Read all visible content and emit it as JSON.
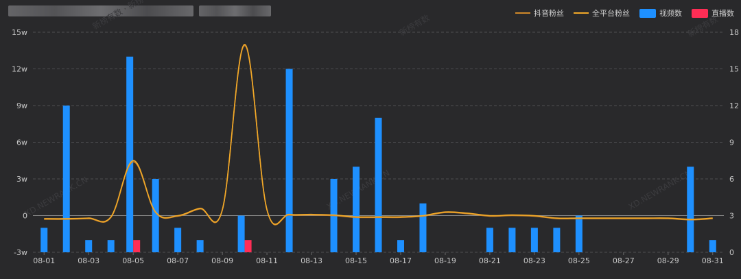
{
  "header": {
    "blurred_title_widths": [
      270,
      105
    ]
  },
  "legend": {
    "items": [
      {
        "label": "抖音粉丝",
        "kind": "line",
        "color": "#d0892a"
      },
      {
        "label": "全平台粉丝",
        "kind": "line",
        "color": "#f2a928"
      },
      {
        "label": "视频数",
        "kind": "rect",
        "color": "#1e90ff"
      },
      {
        "label": "直播数",
        "kind": "rect",
        "color": "#ff2d55"
      }
    ]
  },
  "watermarks": [
    "新榜有数 · 新榜",
    "新榜有数",
    "新榜有数",
    "XD.NEWRANK.CN",
    "XD.NEWRANK.CN",
    "XD.NEWRANK.CN"
  ],
  "chart_data": {
    "type": "bar",
    "x_dates": [
      "08-01",
      "08-02",
      "08-03",
      "08-04",
      "08-05",
      "08-06",
      "08-07",
      "08-08",
      "08-09",
      "08-10",
      "08-11",
      "08-12",
      "08-13",
      "08-14",
      "08-15",
      "08-16",
      "08-17",
      "08-18",
      "08-19",
      "08-20",
      "08-21",
      "08-22",
      "08-23",
      "08-24",
      "08-25",
      "08-26",
      "08-27",
      "08-28",
      "08-29",
      "08-30",
      "08-31"
    ],
    "x_tick_labels": [
      "08-01",
      "08-03",
      "08-05",
      "08-07",
      "08-09",
      "08-11",
      "08-13",
      "08-15",
      "08-17",
      "08-19",
      "08-21",
      "08-23",
      "08-25",
      "08-27",
      "08-29",
      "08-31"
    ],
    "left_axis": {
      "min": -3,
      "max": 15,
      "step": 3,
      "labels": [
        "-3w",
        "0",
        "3w",
        "6w",
        "9w",
        "12w",
        "15w"
      ],
      "unit": "w (万)"
    },
    "right_axis": {
      "min": 0,
      "max": 18,
      "step": 3,
      "labels": [
        "0",
        "3",
        "6",
        "9",
        "12",
        "15",
        "18"
      ]
    },
    "grid": true,
    "legend_position": "top-right",
    "series": [
      {
        "name": "视频数",
        "type": "bar",
        "axis": "right",
        "color": "#1e90ff",
        "values": [
          2,
          12,
          1,
          1,
          16,
          6,
          2,
          1,
          0,
          3,
          0,
          15,
          0,
          6,
          7,
          11,
          1,
          4,
          0,
          0,
          2,
          2,
          2,
          2,
          3,
          0,
          0,
          0,
          0,
          7,
          1
        ]
      },
      {
        "name": "直播数",
        "type": "bar",
        "axis": "right",
        "color": "#ff2d55",
        "values": [
          0,
          0,
          0,
          0,
          1,
          0,
          0,
          0,
          0,
          1,
          0,
          0,
          0,
          0,
          0,
          0,
          0,
          0,
          0,
          0,
          0,
          0,
          0,
          0,
          0,
          0,
          0,
          0,
          0,
          0,
          0
        ]
      },
      {
        "name": "全平台粉丝",
        "type": "line",
        "axis": "left",
        "color": "#f2a928",
        "values": [
          -0.25,
          -0.25,
          -0.2,
          -0.1,
          4.5,
          0.3,
          0,
          0.6,
          0.5,
          14,
          0.5,
          0.1,
          0.1,
          0.05,
          -0.1,
          -0.1,
          -0.1,
          0,
          0.3,
          0.2,
          0,
          0.05,
          0,
          -0.2,
          -0.2,
          -0.2,
          -0.2,
          -0.2,
          -0.2,
          -0.3,
          -0.2
        ]
      },
      {
        "name": "抖音粉丝",
        "type": "line",
        "axis": "left",
        "color": "#d0892a",
        "values": [
          -0.3,
          -0.3,
          -0.25,
          -0.15,
          4.4,
          0.25,
          -0.05,
          0.55,
          0.45,
          13.9,
          0.45,
          0.05,
          0.05,
          0,
          -0.15,
          -0.15,
          -0.15,
          -0.05,
          0.25,
          0.15,
          -0.05,
          0,
          -0.05,
          -0.25,
          -0.25,
          -0.25,
          -0.25,
          -0.25,
          -0.25,
          -0.35,
          -0.25
        ]
      }
    ]
  }
}
